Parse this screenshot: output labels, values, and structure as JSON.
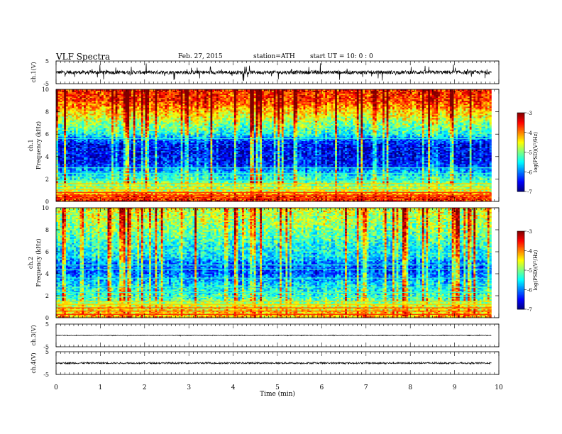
{
  "header": {
    "title": "VLF  Spectra",
    "date": "Feb. 27, 2015",
    "station": "station=ATH",
    "start_ut": "start  UT  =   10: 0  : 0"
  },
  "chart_data": [
    {
      "type": "line",
      "id": "ch1-waveform",
      "ylabel": "ch.1(V)",
      "ylim": [
        -5,
        5
      ],
      "yticks": [
        "5",
        "-5"
      ],
      "xlim": [
        0,
        10
      ],
      "x_end": 9.83,
      "baseline": 0,
      "noise_amplitude": 0.8,
      "burst_amplitude": 3.5,
      "color": "#000000"
    },
    {
      "type": "heatmap",
      "id": "ch1-spectrogram",
      "ylabel": "Frequency  (kHz)",
      "channel_label": "ch.1",
      "ylim": [
        0,
        10
      ],
      "yticks": [
        "0",
        "2",
        "4",
        "6",
        "8",
        "10"
      ],
      "xlim": [
        0,
        10
      ],
      "x_end": 9.83,
      "value_unit": "log(PSD)",
      "colorbar": {
        "label": "log(PSD)(V²/Hz)",
        "range": [
          -7,
          -3
        ],
        "ticks": [
          "-3",
          "-4",
          "-5",
          "-6",
          "-7"
        ]
      },
      "profile_khz_value": [
        [
          0,
          -3.6
        ],
        [
          0.5,
          -3.8
        ],
        [
          1.0,
          -4.8
        ],
        [
          1.6,
          -5.0
        ],
        [
          2.0,
          -5.3
        ],
        [
          2.6,
          -5.7
        ],
        [
          3.2,
          -6.3
        ],
        [
          4.0,
          -6.5
        ],
        [
          5.0,
          -6.5
        ],
        [
          5.6,
          -6.0
        ],
        [
          6.0,
          -5.4
        ],
        [
          7.0,
          -4.9
        ],
        [
          8.0,
          -4.3
        ],
        [
          9.0,
          -3.7
        ],
        [
          10.0,
          -3.6
        ]
      ],
      "lines_khz": [
        0.3,
        0.55,
        0.8,
        1.05,
        1.3,
        1.6,
        1.85,
        2.2,
        2.5,
        3.0,
        5.6
      ]
    },
    {
      "type": "heatmap",
      "id": "ch2-spectrogram",
      "ylabel": "Frequency  (kHz)",
      "channel_label": "ch.2",
      "ylim": [
        0,
        10
      ],
      "yticks": [
        "0",
        "2",
        "4",
        "6",
        "8",
        "10"
      ],
      "xlim": [
        0,
        10
      ],
      "x_end": 9.83,
      "value_unit": "log(PSD)",
      "colorbar": {
        "label": "log(PSD)(V²/Hz)",
        "range": [
          -7,
          -3
        ],
        "ticks": [
          "-3",
          "-4",
          "-5",
          "-6",
          "-7"
        ]
      },
      "profile_khz_value": [
        [
          0,
          -4.2
        ],
        [
          0.5,
          -4.3
        ],
        [
          1.0,
          -4.6
        ],
        [
          1.6,
          -5.1
        ],
        [
          2.0,
          -5.3
        ],
        [
          3.0,
          -5.6
        ],
        [
          3.6,
          -5.9
        ],
        [
          4.2,
          -6.2
        ],
        [
          5.0,
          -6.0
        ],
        [
          5.5,
          -5.6
        ],
        [
          6.5,
          -5.4
        ],
        [
          8.0,
          -5.0
        ],
        [
          9.0,
          -4.8
        ],
        [
          10.0,
          -4.6
        ]
      ],
      "lines_khz": [
        0.3,
        0.6,
        0.9,
        1.2,
        1.5,
        1.9,
        2.3,
        2.8,
        3.6,
        4.4,
        4.8
      ]
    },
    {
      "type": "line",
      "id": "ch3-waveform",
      "ylabel": "ch.3(V)",
      "ylim": [
        -5,
        5
      ],
      "yticks": [
        "5",
        "-5"
      ],
      "xlim": [
        0,
        10
      ],
      "x_end": 9.83,
      "baseline": 0,
      "noise_amplitude": 0.15,
      "burst_amplitude": 0.15,
      "color": "#000000"
    },
    {
      "type": "line",
      "id": "ch4-waveform",
      "ylabel": "ch.4(V)",
      "ylim": [
        -5,
        5
      ],
      "yticks": [
        "5",
        "-5"
      ],
      "xlim": [
        0,
        10
      ],
      "x_end": 9.83,
      "baseline": 0,
      "noise_amplitude": 0.35,
      "burst_amplitude": 0.35,
      "color": "#000000"
    }
  ],
  "x_axis": {
    "label": "Time  (min)",
    "ticks": [
      "0",
      "1",
      "2",
      "3",
      "4",
      "5",
      "6",
      "7",
      "8",
      "9",
      "10"
    ]
  }
}
